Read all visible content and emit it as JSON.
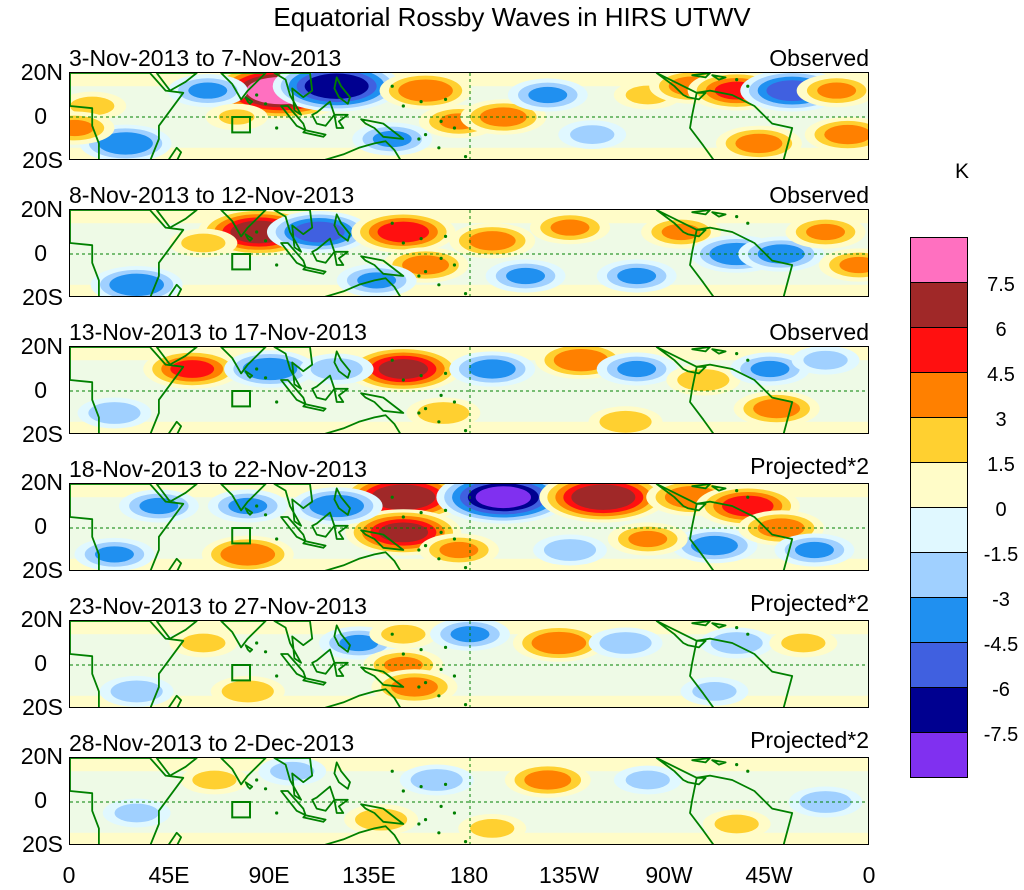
{
  "title": "Equatorial Rossby Waves in HIRS UTWV",
  "units": "K",
  "panels": [
    {
      "date_range": "3-Nov-2013 to 7-Nov-2013",
      "type": "Observed"
    },
    {
      "date_range": "8-Nov-2013 to 12-Nov-2013",
      "type": "Observed"
    },
    {
      "date_range": "13-Nov-2013 to 17-Nov-2013",
      "type": "Observed"
    },
    {
      "date_range": "18-Nov-2013 to 22-Nov-2013",
      "type": "Projected*2"
    },
    {
      "date_range": "23-Nov-2013 to 27-Nov-2013",
      "type": "Projected*2"
    },
    {
      "date_range": "28-Nov-2013 to 2-Dec-2013",
      "type": "Projected*2"
    }
  ],
  "lat_labels": [
    "20N",
    "0",
    "20S"
  ],
  "lon_labels": [
    "0",
    "45E",
    "90E",
    "135E",
    "180",
    "135W",
    "90W",
    "45W",
    "0"
  ],
  "colorbar": {
    "tick_labels": [
      "7.5",
      "6",
      "4.5",
      "3",
      "1.5",
      "0",
      "-1.5",
      "-3",
      "-4.5",
      "-6",
      "-7.5"
    ],
    "colors": [
      "#ff70c0",
      "#a02828",
      "#ff1010",
      "#ff8000",
      "#ffd030",
      "#fffcc8",
      "#e0f8ff",
      "#a0d0ff",
      "#2090f0",
      "#4060e0",
      "#000090",
      "#8030f0"
    ]
  },
  "colors": {
    "coast": "#008000",
    "equator": "#008000"
  },
  "anomalies": [
    [
      {
        "lon": 95,
        "lat": 12,
        "v": 8.5
      },
      {
        "lon": 120,
        "lat": 14,
        "v": -7
      },
      {
        "lon": 62,
        "lat": 12,
        "v": -3
      },
      {
        "lon": 75,
        "lat": 0,
        "v": 1.5
      },
      {
        "lon": 25,
        "lat": -12,
        "v": -4
      },
      {
        "lon": 10,
        "lat": 5,
        "v": 2
      },
      {
        "lon": 2,
        "lat": -5,
        "v": 3
      },
      {
        "lon": 160,
        "lat": 12,
        "v": 4
      },
      {
        "lon": 175,
        "lat": -2,
        "v": 3
      },
      {
        "lon": 195,
        "lat": 0,
        "v": 3.5
      },
      {
        "lon": 215,
        "lat": 10,
        "v": -3
      },
      {
        "lon": 145,
        "lat": -10,
        "v": -3
      },
      {
        "lon": 260,
        "lat": 10,
        "v": 2
      },
      {
        "lon": 280,
        "lat": 14,
        "v": 3.5
      },
      {
        "lon": 300,
        "lat": 12,
        "v": 4.5
      },
      {
        "lon": 325,
        "lat": 12,
        "v": -5
      },
      {
        "lon": 345,
        "lat": 12,
        "v": 3
      },
      {
        "lon": 350,
        "lat": -8,
        "v": 3.5
      },
      {
        "lon": 310,
        "lat": -12,
        "v": 3.5
      },
      {
        "lon": 235,
        "lat": -8,
        "v": -2
      }
    ],
    [
      {
        "lon": 85,
        "lat": 10,
        "v": 6.5
      },
      {
        "lon": 112,
        "lat": 10,
        "v": -5
      },
      {
        "lon": 30,
        "lat": -14,
        "v": -4
      },
      {
        "lon": 60,
        "lat": 5,
        "v": 2
      },
      {
        "lon": 150,
        "lat": 10,
        "v": 5
      },
      {
        "lon": 160,
        "lat": -5,
        "v": 3.5
      },
      {
        "lon": 138,
        "lat": -12,
        "v": -3
      },
      {
        "lon": 190,
        "lat": 6,
        "v": 3.5
      },
      {
        "lon": 205,
        "lat": -10,
        "v": -3
      },
      {
        "lon": 225,
        "lat": 12,
        "v": 3
      },
      {
        "lon": 255,
        "lat": -10,
        "v": -3
      },
      {
        "lon": 275,
        "lat": 10,
        "v": 3
      },
      {
        "lon": 300,
        "lat": 0,
        "v": -4
      },
      {
        "lon": 320,
        "lat": 0,
        "v": -3.5
      },
      {
        "lon": 340,
        "lat": 10,
        "v": 3
      },
      {
        "lon": 355,
        "lat": -5,
        "v": 3
      }
    ],
    [
      {
        "lon": 55,
        "lat": 10,
        "v": 4.5
      },
      {
        "lon": 90,
        "lat": 10,
        "v": -4
      },
      {
        "lon": 150,
        "lat": 10,
        "v": 6
      },
      {
        "lon": 120,
        "lat": 10,
        "v": -2.5
      },
      {
        "lon": 168,
        "lat": -10,
        "v": 2.5
      },
      {
        "lon": 190,
        "lat": 10,
        "v": -3.5
      },
      {
        "lon": 230,
        "lat": 14,
        "v": 4
      },
      {
        "lon": 255,
        "lat": 10,
        "v": -3
      },
      {
        "lon": 250,
        "lat": -14,
        "v": 2.5
      },
      {
        "lon": 285,
        "lat": 5,
        "v": 2.5
      },
      {
        "lon": 315,
        "lat": 10,
        "v": -3
      },
      {
        "lon": 318,
        "lat": -8,
        "v": 3.5
      },
      {
        "lon": 20,
        "lat": -10,
        "v": -2.5
      },
      {
        "lon": 340,
        "lat": 14,
        "v": -2
      }
    ],
    [
      {
        "lon": 150,
        "lat": 14,
        "v": 7
      },
      {
        "lon": 195,
        "lat": 14,
        "v": -7.5
      },
      {
        "lon": 240,
        "lat": 14,
        "v": 7
      },
      {
        "lon": 150,
        "lat": -2,
        "v": 6
      },
      {
        "lon": 120,
        "lat": 10,
        "v": -4
      },
      {
        "lon": 80,
        "lat": 10,
        "v": -3
      },
      {
        "lon": 80,
        "lat": -12,
        "v": 4
      },
      {
        "lon": 40,
        "lat": 10,
        "v": -3
      },
      {
        "lon": 20,
        "lat": -12,
        "v": -3
      },
      {
        "lon": 280,
        "lat": 14,
        "v": 4
      },
      {
        "lon": 305,
        "lat": 10,
        "v": 5
      },
      {
        "lon": 290,
        "lat": -8,
        "v": -3.5
      },
      {
        "lon": 320,
        "lat": 0,
        "v": 3.5
      },
      {
        "lon": 335,
        "lat": -10,
        "v": -3
      },
      {
        "lon": 260,
        "lat": -5,
        "v": 3
      },
      {
        "lon": 225,
        "lat": -10,
        "v": -2.5
      },
      {
        "lon": 175,
        "lat": -10,
        "v": 3
      }
    ],
    [
      {
        "lon": 130,
        "lat": 10,
        "v": -3
      },
      {
        "lon": 150,
        "lat": 0,
        "v": 3
      },
      {
        "lon": 155,
        "lat": -10,
        "v": 3.5
      },
      {
        "lon": 150,
        "lat": 14,
        "v": 2
      },
      {
        "lon": 180,
        "lat": 14,
        "v": -3
      },
      {
        "lon": 220,
        "lat": 10,
        "v": 4
      },
      {
        "lon": 250,
        "lat": 10,
        "v": -2.5
      },
      {
        "lon": 80,
        "lat": -12,
        "v": 2.5
      },
      {
        "lon": 60,
        "lat": 10,
        "v": 2
      },
      {
        "lon": 30,
        "lat": -12,
        "v": -2.5
      },
      {
        "lon": 300,
        "lat": 10,
        "v": -2.5
      },
      {
        "lon": 330,
        "lat": 10,
        "v": 2
      },
      {
        "lon": 290,
        "lat": -12,
        "v": -2
      }
    ],
    [
      {
        "lon": 215,
        "lat": 10,
        "v": 3.5
      },
      {
        "lon": 165,
        "lat": 10,
        "v": -2.5
      },
      {
        "lon": 140,
        "lat": -8,
        "v": 2.5
      },
      {
        "lon": 65,
        "lat": 10,
        "v": 2
      },
      {
        "lon": 30,
        "lat": -5,
        "v": -2
      },
      {
        "lon": 260,
        "lat": 10,
        "v": -2
      },
      {
        "lon": 300,
        "lat": -10,
        "v": 2
      },
      {
        "lon": 340,
        "lat": 0,
        "v": -2.5
      },
      {
        "lon": 100,
        "lat": 14,
        "v": -2
      },
      {
        "lon": 190,
        "lat": -12,
        "v": 2
      }
    ]
  ]
}
